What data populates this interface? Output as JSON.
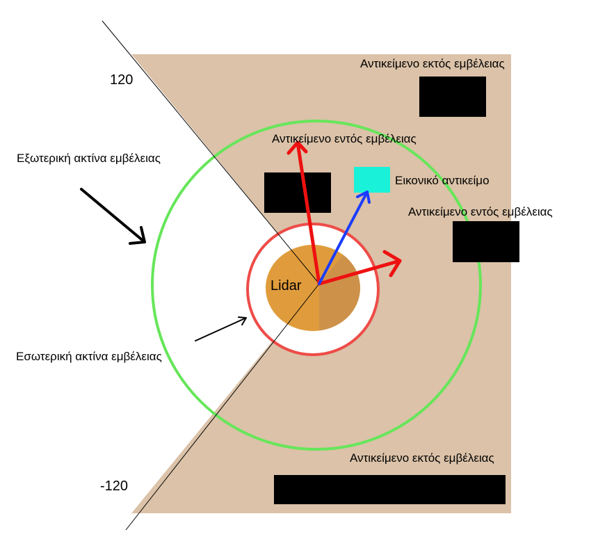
{
  "angles": {
    "max": "120",
    "min": "-120"
  },
  "labels": {
    "outer_radius": "Εξωτερική ακτίνα εμβέλειας",
    "inner_radius": "Εσωτερική ακτίνα εμβέλειας",
    "lidar": "Lidar",
    "out_of_range_top": "Αντικείμενο εκτός εμβέλειας",
    "in_range_top": "Αντικείμενο εντός εμβέλειας",
    "virtual_object": "Εικονικό αντικείμο",
    "in_range_right": "Αντικείμενο εντός εμβέλειας",
    "out_of_range_bottom": "Αντικείμενο εκτός εμβέλειας"
  },
  "colors": {
    "scan_area": "#dbc2a8",
    "outer_ring": "#66e65a",
    "inner_ring": "#ee4c48",
    "lidar_body": "#e09c3c",
    "obstacle": "#000000",
    "virtual_object": "#19f2d8",
    "ray": "#ee1111",
    "virtual_ray": "#1a3cff"
  }
}
